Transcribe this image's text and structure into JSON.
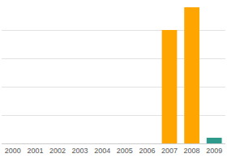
{
  "chart_data": {
    "type": "bar",
    "categories": [
      "2000",
      "2001",
      "2002",
      "2003",
      "2004",
      "2005",
      "2006",
      "2007",
      "2008",
      "2009"
    ],
    "values": [
      0,
      0,
      0,
      0,
      0,
      0,
      0,
      4,
      4.8,
      0.2
    ],
    "colors": [
      "#ffa500",
      "#ffa500",
      "#ffa500",
      "#ffa500",
      "#ffa500",
      "#ffa500",
      "#ffa500",
      "#ffa500",
      "#ffa500",
      "#2e9a8c"
    ],
    "ylim": [
      0,
      5
    ],
    "yticks": [
      0,
      1,
      2,
      3,
      4,
      5
    ],
    "grid": true,
    "tick_labels": "x"
  }
}
